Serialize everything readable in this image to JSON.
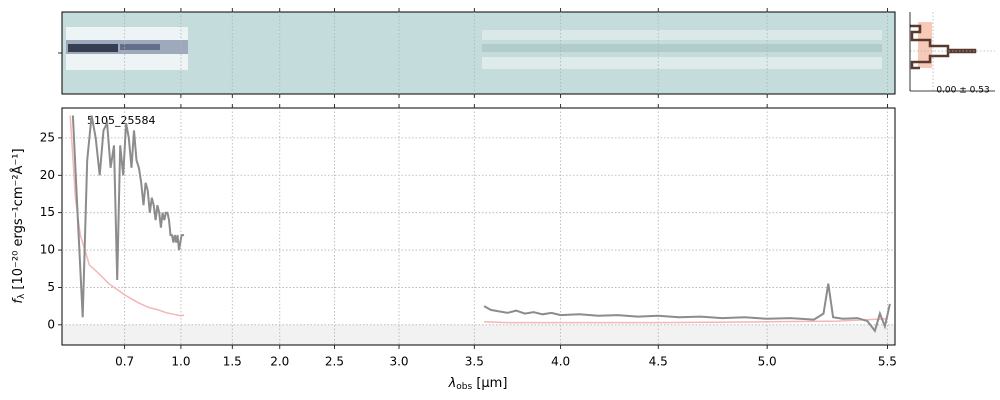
{
  "chart_data": {
    "type": "line",
    "title": "5105_25584",
    "x_label": [
      "λ",
      "obs",
      " [μm]"
    ],
    "y_label": [
      "f",
      "λ",
      " [10⁻²⁰ ergs⁻¹cm⁻²Å⁻¹]"
    ],
    "xlim": [
      0.545,
      5.53
    ],
    "ylim": [
      -2.7,
      29
    ],
    "xticks": [
      0.7,
      {
        "value": 1,
        "label": "1.0"
      },
      1.5,
      {
        "value": 2,
        "label": "2.0"
      },
      2.5,
      {
        "value": 3,
        "label": "3.0"
      },
      3.5,
      {
        "value": 4,
        "label": "4.0"
      },
      4.5,
      {
        "value": 5,
        "label": "5.0"
      },
      5.5
    ],
    "yticks": [
      0,
      5,
      10,
      15,
      20,
      25
    ],
    "grid": true,
    "series": [
      {
        "name": "flux",
        "color": "#8c8c8c",
        "x": [
          0.565,
          0.575,
          0.585,
          0.595,
          0.605,
          0.615,
          0.625,
          0.635,
          0.645,
          0.655,
          0.665,
          0.675,
          0.685,
          0.695,
          0.705,
          0.715,
          0.725,
          0.735,
          0.745,
          0.755,
          0.765,
          0.775,
          0.785,
          0.795,
          0.805,
          0.815,
          0.825,
          0.835,
          0.845,
          0.855,
          0.865,
          0.875,
          0.885,
          0.895,
          0.905,
          0.915,
          0.925,
          0.935,
          0.945,
          0.955,
          0.965,
          0.975,
          0.985,
          0.995,
          1.005,
          1.015,
          1.025,
          2,
          3.56,
          3.6,
          3.65,
          3.7,
          3.75,
          3.8,
          3.85,
          3.9,
          3.95,
          4,
          4.1,
          4.2,
          4.3,
          4.4,
          4.5,
          4.6,
          4.7,
          4.8,
          4.9,
          5,
          5.1,
          5.2,
          5.24,
          5.26,
          5.28,
          5.32,
          5.38,
          5.42,
          5.45,
          5.47,
          5.49,
          5.51
        ],
        "values": [
          28,
          14,
          1,
          22,
          28,
          25,
          20,
          26,
          27,
          21,
          24,
          6,
          24,
          20,
          27,
          25,
          21,
          26,
          22,
          21,
          19,
          16,
          19,
          18,
          15,
          17,
          16,
          14,
          16,
          15,
          13,
          15,
          14,
          15,
          15,
          14,
          12,
          12,
          11,
          12,
          11,
          12,
          10,
          11,
          12,
          12,
          12,
          null,
          2.5,
          2.0,
          1.8,
          1.6,
          1.9,
          1.5,
          1.7,
          1.4,
          1.6,
          1.3,
          1.4,
          1.2,
          1.3,
          1.1,
          1.2,
          1.0,
          1.1,
          0.9,
          1.0,
          0.8,
          0.9,
          0.7,
          1.5,
          5.5,
          1.0,
          0.8,
          0.9,
          0.5,
          -0.8,
          1.5,
          -0.2,
          2.8
        ]
      },
      {
        "name": "error",
        "color": "#f4b6b6",
        "x": [
          0.56,
          0.57,
          0.58,
          0.6,
          0.62,
          0.65,
          0.7,
          0.75,
          0.8,
          0.85,
          0.9,
          0.95,
          1.0,
          1.025,
          2,
          3.56,
          3.7,
          4.0,
          4.5,
          5.0,
          5.3,
          5.5
        ],
        "values": [
          28,
          17,
          12,
          8,
          7,
          5.5,
          4,
          3,
          2.3,
          2.0,
          1.6,
          1.4,
          1.2,
          1.3,
          null,
          0.4,
          0.3,
          0.3,
          0.3,
          0.4,
          0.5,
          0.8
        ]
      }
    ],
    "side_label": "0.00 ± 0.53"
  }
}
